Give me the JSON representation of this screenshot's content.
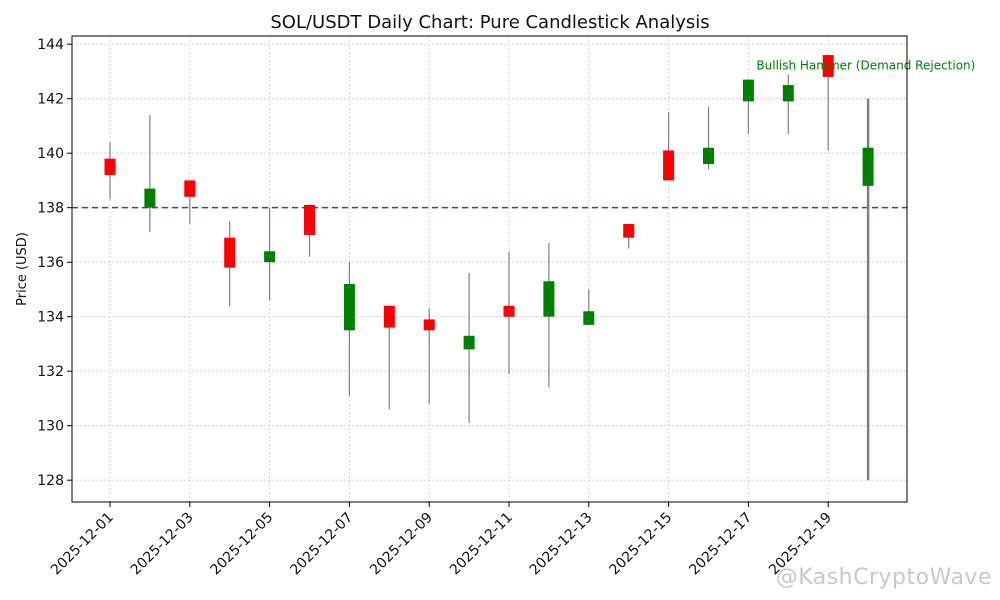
{
  "chart_data": {
    "type": "candlestick",
    "title": "SOL/USDT Daily Chart: Pure Candlestick Analysis",
    "xlabel": "",
    "ylabel": "Price (USD)",
    "ylim": [
      127.2,
      144.3
    ],
    "yticks": [
      128,
      130,
      132,
      134,
      136,
      138,
      140,
      142,
      144
    ],
    "x_tick_labels": [
      "2025-12-01",
      "2025-12-03",
      "2025-12-05",
      "2025-12-07",
      "2025-12-09",
      "2025-12-11",
      "2025-12-13",
      "2025-12-15",
      "2025-12-17",
      "2025-12-19"
    ],
    "grid": true,
    "colors": {
      "up": "#008000",
      "down": "#ff0000",
      "wick": "#808080",
      "hline": "#3b3bdc",
      "annotation": "#008000"
    },
    "candles": [
      {
        "date": "2025-12-01",
        "open": 139.8,
        "high": 140.4,
        "low": 138.3,
        "close": 139.2
      },
      {
        "date": "2025-12-02",
        "open": 138.0,
        "high": 141.4,
        "low": 137.1,
        "close": 138.7
      },
      {
        "date": "2025-12-03",
        "open": 139.0,
        "high": 139.0,
        "low": 137.4,
        "close": 138.4
      },
      {
        "date": "2025-12-04",
        "open": 136.9,
        "high": 137.5,
        "low": 134.4,
        "close": 135.8
      },
      {
        "date": "2025-12-05",
        "open": 136.0,
        "high": 138.0,
        "low": 134.6,
        "close": 136.4
      },
      {
        "date": "2025-12-06",
        "open": 138.1,
        "high": 138.1,
        "low": 136.2,
        "close": 137.0
      },
      {
        "date": "2025-12-07",
        "open": 133.5,
        "high": 136.0,
        "low": 131.1,
        "close": 135.2
      },
      {
        "date": "2025-12-08",
        "open": 134.4,
        "high": 134.4,
        "low": 130.6,
        "close": 133.6
      },
      {
        "date": "2025-12-09",
        "open": 133.9,
        "high": 134.3,
        "low": 130.8,
        "close": 133.5
      },
      {
        "date": "2025-12-10",
        "open": 132.8,
        "high": 135.6,
        "low": 130.1,
        "close": 133.3
      },
      {
        "date": "2025-12-11",
        "open": 134.4,
        "high": 136.4,
        "low": 131.9,
        "close": 134.0
      },
      {
        "date": "2025-12-12",
        "open": 134.0,
        "high": 136.7,
        "low": 131.4,
        "close": 135.3
      },
      {
        "date": "2025-12-13",
        "open": 133.7,
        "high": 135.0,
        "low": 133.7,
        "close": 134.2
      },
      {
        "date": "2025-12-14",
        "open": 137.4,
        "high": 137.4,
        "low": 136.5,
        "close": 136.9
      },
      {
        "date": "2025-12-15",
        "open": 140.1,
        "high": 141.5,
        "low": 139.0,
        "close": 139.0
      },
      {
        "date": "2025-12-16",
        "open": 139.6,
        "high": 141.7,
        "low": 139.4,
        "close": 140.2
      },
      {
        "date": "2025-12-17",
        "open": 141.9,
        "high": 142.7,
        "low": 140.7,
        "close": 142.7
      },
      {
        "date": "2025-12-18",
        "open": 141.9,
        "high": 142.9,
        "low": 140.7,
        "close": 142.5
      },
      {
        "date": "2025-12-19",
        "open": 143.6,
        "high": 143.6,
        "low": 140.1,
        "close": 142.8
      },
      {
        "date": "2025-12-20",
        "open": 138.8,
        "high": 142.0,
        "low": 128.0,
        "close": 140.2
      }
    ],
    "reference_line": {
      "y": 138.0,
      "style": "dashed"
    },
    "annotations": [
      {
        "text": "Bullish Hammer (Demand Rejection)",
        "x_date": "2025-12-17",
        "y": 143.0
      }
    ]
  },
  "watermark": "@KashCryptoWave"
}
